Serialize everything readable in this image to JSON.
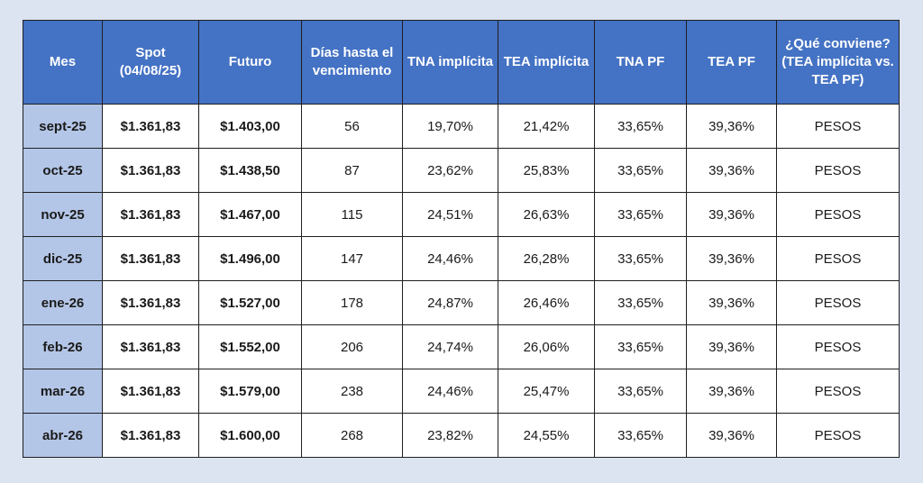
{
  "chart_data": {
    "type": "table",
    "columns": [
      "Mes",
      "Spot (04/08/25)",
      "Futuro",
      "Días hasta el vencimiento",
      "TNA implícita",
      "TEA implícita",
      "TNA PF",
      "TEA PF",
      "¿Qué conviene? (TEA implícita vs. TEA PF)"
    ],
    "rows": [
      [
        "sept-25",
        "$1.361,83",
        "$1.403,00",
        "56",
        "19,70%",
        "21,42%",
        "33,65%",
        "39,36%",
        "PESOS"
      ],
      [
        "oct-25",
        "$1.361,83",
        "$1.438,50",
        "87",
        "23,62%",
        "25,83%",
        "33,65%",
        "39,36%",
        "PESOS"
      ],
      [
        "nov-25",
        "$1.361,83",
        "$1.467,00",
        "115",
        "24,51%",
        "26,63%",
        "33,65%",
        "39,36%",
        "PESOS"
      ],
      [
        "dic-25",
        "$1.361,83",
        "$1.496,00",
        "147",
        "24,46%",
        "26,28%",
        "33,65%",
        "39,36%",
        "PESOS"
      ],
      [
        "ene-26",
        "$1.361,83",
        "$1.527,00",
        "178",
        "24,87%",
        "26,46%",
        "33,65%",
        "39,36%",
        "PESOS"
      ],
      [
        "feb-26",
        "$1.361,83",
        "$1.552,00",
        "206",
        "24,74%",
        "26,06%",
        "33,65%",
        "39,36%",
        "PESOS"
      ],
      [
        "mar-26",
        "$1.361,83",
        "$1.579,00",
        "238",
        "24,46%",
        "25,47%",
        "33,65%",
        "39,36%",
        "PESOS"
      ],
      [
        "abr-26",
        "$1.361,83",
        "$1.600,00",
        "268",
        "23,82%",
        "24,55%",
        "33,65%",
        "39,36%",
        "PESOS"
      ]
    ]
  },
  "colors": {
    "header_bg": "#4472c4",
    "month_bg": "#b4c6e7",
    "page_bg": "#dce4f2"
  }
}
